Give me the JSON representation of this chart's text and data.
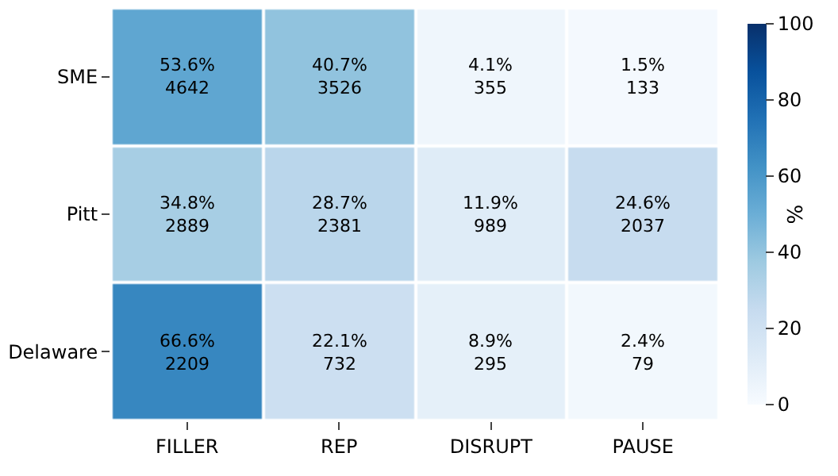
{
  "chart_data": {
    "type": "heatmap",
    "categories": [
      "FILLER",
      "REP",
      "DISRUPT",
      "PAUSE"
    ],
    "y_categories": [
      "SME",
      "Pitt",
      "Delaware"
    ],
    "cells": [
      [
        53.6,
        40.7,
        4.1,
        1.5
      ],
      [
        34.8,
        28.7,
        11.9,
        24.6
      ],
      [
        66.6,
        22.1,
        8.9,
        2.4
      ]
    ],
    "cell_labels": [
      [
        "53.6%\n4642",
        "40.7%\n3526",
        "4.1%\n355",
        "1.5%\n133"
      ],
      [
        "34.8%\n2889",
        "28.7%\n2381",
        "11.9%\n989",
        "24.6%\n2037"
      ],
      [
        "66.6%\n2209",
        "22.1%\n732",
        "8.9%\n295",
        "2.4%\n79"
      ]
    ],
    "clim": [
      0,
      100
    ],
    "cticks": [
      0,
      20,
      40,
      60,
      80,
      100
    ],
    "clabel": "%"
  }
}
